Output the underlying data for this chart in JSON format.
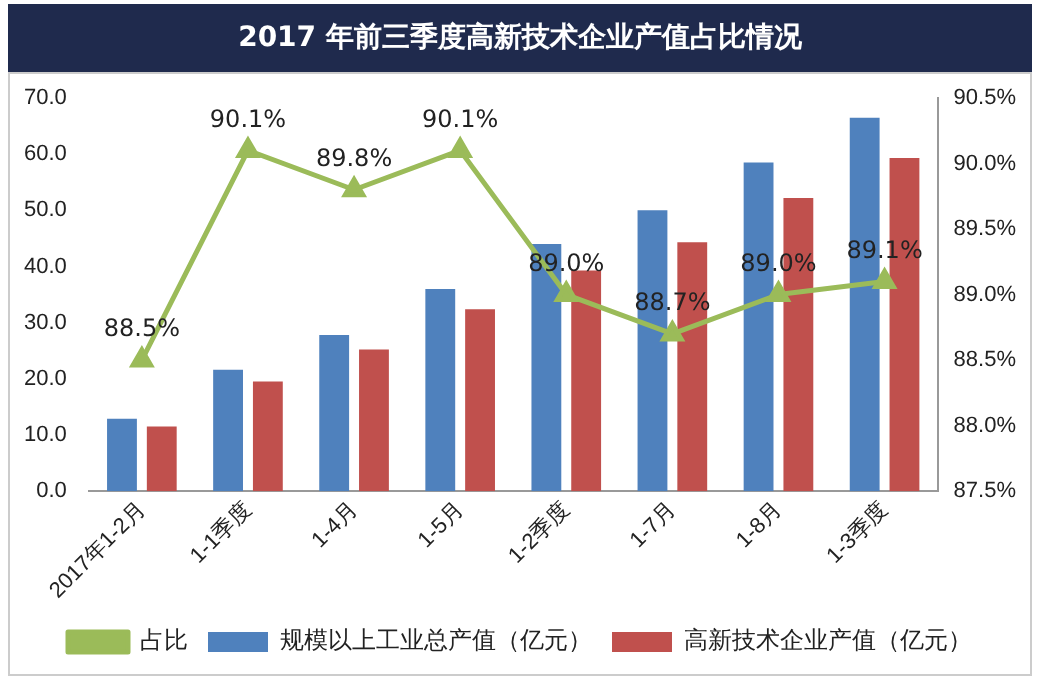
{
  "chart_data": {
    "type": "bar",
    "title": "2017 年前三季度高新技术企业产值占比情况",
    "categories": [
      "2017年1-2月",
      "1-1季度",
      "1-4月",
      "1-5月",
      "1-2季度",
      "1-7月",
      "1-8月",
      "1-3季度"
    ],
    "series": [
      {
        "name": "规模以上工业总产值（亿元）",
        "color": "#4f81bd",
        "values": [
          12.9,
          21.6,
          27.8,
          36.0,
          44.0,
          50.0,
          58.5,
          66.5
        ]
      },
      {
        "name": "高新技术企业产值（亿元）",
        "color": "#c0504d",
        "values": [
          11.5,
          19.5,
          25.2,
          32.4,
          39.3,
          44.3,
          52.2,
          59.3
        ]
      },
      {
        "name": "占比",
        "type": "line",
        "axis": "y2",
        "color": "#9bbb59",
        "marker": "triangle",
        "values": [
          88.5,
          90.1,
          89.8,
          90.1,
          89.0,
          88.7,
          89.0,
          89.1
        ],
        "value_labels": [
          "88.5%",
          "90.1%",
          "89.8%",
          "90.1%",
          "89.0%",
          "88.7%",
          "89.0%",
          "89.1%"
        ]
      }
    ],
    "ylim": [
      0,
      70
    ],
    "yticks": [
      {
        "value": 0,
        "label": "0.0"
      },
      {
        "value": 10,
        "label": "10.0"
      },
      {
        "value": 20,
        "label": "20.0"
      },
      {
        "value": 30,
        "label": "30.0"
      },
      {
        "value": 40,
        "label": "40.0"
      },
      {
        "value": 50,
        "label": "50.0"
      },
      {
        "value": 60,
        "label": "60.0"
      },
      {
        "value": 70,
        "label": "70.0"
      }
    ],
    "y2lim": [
      87.5,
      90.5
    ],
    "y2ticks": [
      {
        "value": 87.5,
        "label": "87.5%"
      },
      {
        "value": 88,
        "label": "88.0%"
      },
      {
        "value": 88.5,
        "label": "88.5%"
      },
      {
        "value": 89,
        "label": "89.0%"
      },
      {
        "value": 89.5,
        "label": "89.5%"
      },
      {
        "value": 90,
        "label": "90.0%"
      },
      {
        "value": 90.5,
        "label": "90.5%"
      }
    ],
    "legend": "bottom",
    "grid": false
  }
}
